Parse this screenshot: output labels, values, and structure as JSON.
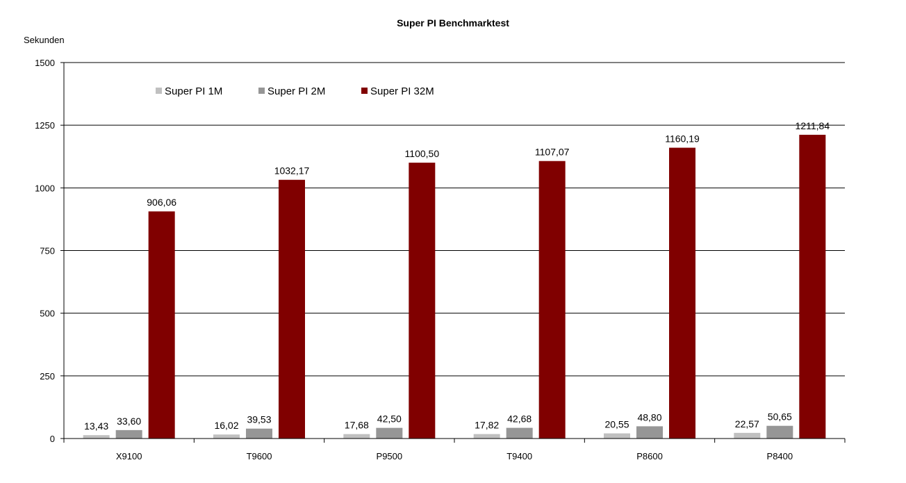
{
  "chart_data": {
    "type": "bar",
    "title": "Super PI Benchmarktest",
    "ylabel": "Sekunden",
    "xlabel": "",
    "ylim": [
      0,
      1500
    ],
    "yticks": [
      "0",
      "250",
      "500",
      "750",
      "1000",
      "1250",
      "1500"
    ],
    "grid": true,
    "legend_position": "top-left",
    "categories": [
      "X9100",
      "T9600",
      "P9500",
      "T9400",
      "P8600",
      "P8400"
    ],
    "series": [
      {
        "name": "Super PI 1M",
        "color": "#c0c0c0",
        "values": [
          13.43,
          16.02,
          17.68,
          17.82,
          20.55,
          22.57
        ],
        "labels": [
          "13,43",
          "16,02",
          "17,68",
          "17,82",
          "20,55",
          "22,57"
        ]
      },
      {
        "name": "Super PI 2M",
        "color": "#969696",
        "values": [
          33.6,
          39.53,
          42.5,
          42.68,
          48.8,
          50.65
        ],
        "labels": [
          "33,60",
          "39,53",
          "42,50",
          "42,68",
          "48,80",
          "50,65"
        ]
      },
      {
        "name": "Super PI 32M",
        "color": "#800000",
        "values": [
          906.06,
          1032.17,
          1100.5,
          1107.07,
          1160.19,
          1211.84
        ],
        "labels": [
          "906,06",
          "1032,17",
          "1100,50",
          "1107,07",
          "1160,19",
          "1211,84"
        ]
      }
    ]
  }
}
